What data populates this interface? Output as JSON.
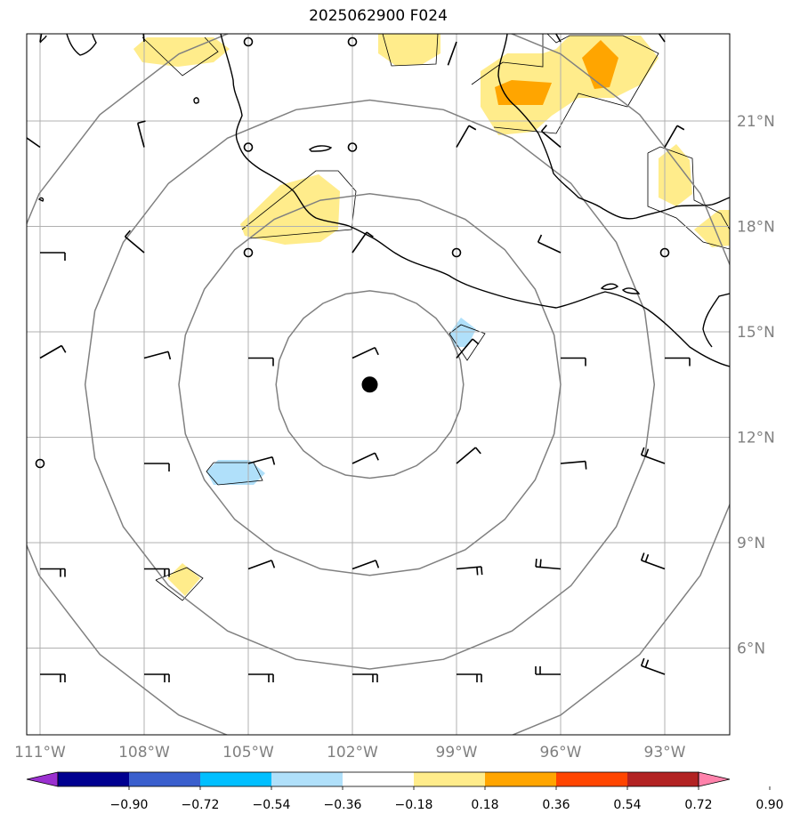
{
  "title": "2025062900 F024",
  "map": {
    "lon_range": [
      -112,
      -91
    ],
    "lat_range": [
      3.5,
      23.5
    ],
    "lon_ticks": [
      {
        "value": -111,
        "label": "111°W"
      },
      {
        "value": -108,
        "label": "108°W"
      },
      {
        "value": -105,
        "label": "105°W"
      },
      {
        "value": -102,
        "label": "102°W"
      },
      {
        "value": -99,
        "label": "99°W"
      },
      {
        "value": -96,
        "label": "96°W"
      },
      {
        "value": -93,
        "label": "93°W"
      }
    ],
    "lat_ticks": [
      {
        "value": 21,
        "label": "21°N"
      },
      {
        "value": 18,
        "label": "18°N"
      },
      {
        "value": 15,
        "label": "15°N"
      },
      {
        "value": 12,
        "label": "12°N"
      },
      {
        "value": 9,
        "label": "9°N"
      },
      {
        "value": 6,
        "label": "6°N"
      }
    ],
    "center": {
      "lon": -101.5,
      "lat": 13.5
    },
    "range_rings_deg": [
      2.7,
      5.5,
      8.2,
      11.0
    ],
    "grid": true
  },
  "colorbar": {
    "labels": [
      "−0.90",
      "−0.72",
      "−0.54",
      "−0.36",
      "−0.18",
      "0.18",
      "0.36",
      "0.54",
      "0.72",
      "0.90"
    ],
    "colors": [
      "#9b30d0",
      "#000090",
      "#3a5fcd",
      "#00bfff",
      "#b0e0fa",
      "#ffffff",
      "#ffec8b",
      "#ffa500",
      "#ff4500",
      "#b22222",
      "#ff82ab"
    ]
  },
  "shading": {
    "positive_color": "#ffec8b",
    "strong_color": "#ffa500",
    "negative_color": "#b0e0fa"
  }
}
